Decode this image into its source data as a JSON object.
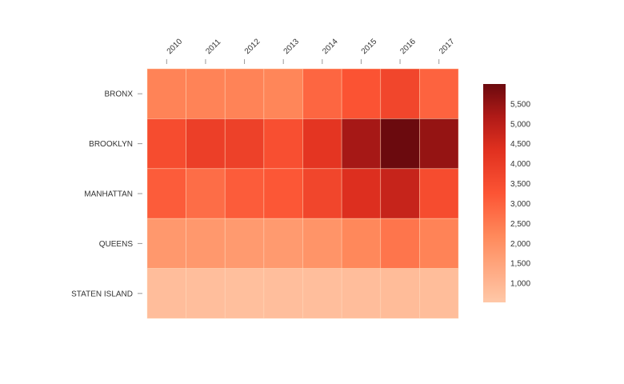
{
  "chart_data": {
    "type": "heatmap",
    "title": "",
    "xlabel": "",
    "ylabel": "",
    "x_categories": [
      "2010",
      "2011",
      "2012",
      "2013",
      "2014",
      "2015",
      "2016",
      "2017"
    ],
    "y_categories": [
      "BRONX",
      "BROOKLYN",
      "MANHATTAN",
      "QUEENS",
      "STATEN ISLAND"
    ],
    "values": [
      [
        2300,
        2300,
        2300,
        2250,
        2900,
        3300,
        3700,
        2950
      ],
      [
        3500,
        3900,
        3850,
        3400,
        4200,
        5300,
        6000,
        5500
      ],
      [
        3100,
        2750,
        3100,
        3200,
        3700,
        4400,
        4800,
        3500
      ],
      [
        1800,
        1800,
        1750,
        1750,
        1900,
        2200,
        2600,
        2300
      ],
      [
        800,
        780,
        760,
        780,
        790,
        800,
        850,
        820
      ]
    ],
    "color_scale": {
      "domain": [
        520,
        6000
      ],
      "low_color": "#ffc8a8",
      "high_color": "#6b0a0e",
      "ticks": [
        1000,
        1500,
        2000,
        2500,
        3000,
        3500,
        4000,
        4500,
        5000,
        5500
      ],
      "tick_labels": [
        "1,000",
        "1,500",
        "2,000",
        "2,500",
        "3,000",
        "3,500",
        "4,000",
        "4,500",
        "5,000",
        "5,500"
      ]
    },
    "legend_position": "right",
    "grid": false
  }
}
